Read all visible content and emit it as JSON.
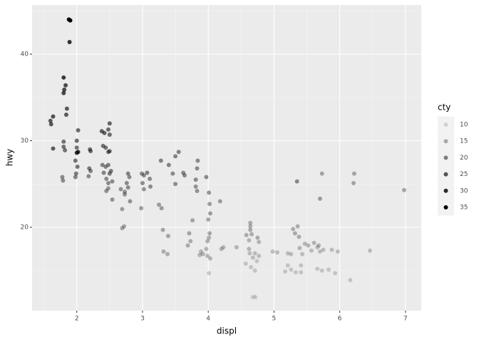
{
  "chart_data": {
    "type": "scatter",
    "x_label": "displ",
    "y_label": "hwy",
    "xlim": [
      1.32,
      7.24
    ],
    "ylim": [
      10.37,
      45.68
    ],
    "xticks": [
      2,
      3,
      4,
      5,
      6,
      7
    ],
    "yticks": [
      20,
      30,
      40
    ],
    "grid": true,
    "legend": {
      "title": "cty",
      "position": "right",
      "breaks": [
        10,
        15,
        20,
        25,
        30,
        35
      ]
    },
    "series": [
      {
        "color": "#000000",
        "x": [
          1.88,
          1.9,
          1.89,
          1.8,
          1.83,
          1.81,
          1.8,
          1.85,
          1.84,
          1.6,
          1.64,
          1.61,
          1.8,
          1.8,
          1.82,
          1.64,
          2.0,
          2.0,
          2.02,
          2.0,
          1.98,
          2.01,
          1.99,
          1.98,
          1.78,
          1.79,
          2.02,
          2.2,
          2.21,
          2.19,
          2.21,
          2.18,
          2.38,
          2.42,
          2.48,
          2.5,
          2.5,
          2.4,
          2.44,
          2.48,
          2.5,
          2.39,
          2.44,
          2.48,
          2.52,
          2.5,
          2.41,
          2.45,
          2.48,
          2.54,
          2.45,
          2.48,
          2.54,
          2.78,
          2.8,
          2.76,
          2.67,
          2.73,
          2.73,
          2.78,
          2.81,
          2.69,
          2.72,
          2.69,
          2.99,
          3.02,
          3.07,
          3.0,
          3.11,
          3.12,
          3.02,
          2.98,
          3.25,
          3.29,
          3.28,
          3.4,
          3.5,
          3.55,
          3.46,
          3.5,
          3.62,
          3.64,
          3.84,
          3.83,
          3.81,
          3.83,
          3.81,
          3.97,
          4.01,
          4.02,
          4.03,
          4.0,
          4.18,
          3.76,
          3.32,
          3.38,
          3.31,
          3.39,
          3.71,
          3.73,
          3.69,
          3.89,
          3.92,
          3.87,
          4.01,
          3.99,
          4.02,
          3.97,
          3.99,
          4.03,
          4.2,
          4.23,
          4.43,
          4.64,
          4.64,
          4.64,
          4.66,
          4.58,
          4.62,
          4.62,
          4.75,
          4.77,
          4.63,
          4.71,
          4.68,
          4.77,
          4.74,
          4.57,
          4.65,
          4.71,
          4.7,
          4.67,
          4.72,
          4.01,
          4.98,
          5.05,
          5.21,
          5.26,
          5.29,
          5.32,
          5.36,
          5.38,
          5.39,
          5.43,
          5.47,
          5.52,
          5.57,
          5.21,
          5.26,
          5.33,
          5.17,
          5.35,
          5.61,
          5.66,
          5.68,
          5.7,
          5.75,
          5.66,
          5.73,
          5.83,
          5.93,
          5.88,
          5.97,
          6.16,
          6.46,
          5.73,
          5.7,
          6.22,
          6.21,
          6.98,
          5.41,
          5.41
        ],
        "values": [
          44.0,
          43.9,
          41.4,
          37.3,
          36.4,
          35.9,
          35.5,
          33.7,
          33.0,
          32.3,
          32.8,
          31.9,
          29.9,
          29.3,
          28.9,
          29.1,
          30.0,
          29.2,
          28.7,
          28.6,
          27.7,
          27.0,
          26.2,
          25.8,
          25.8,
          25.4,
          31.2,
          29.0,
          28.8,
          26.8,
          26.5,
          25.9,
          31.1,
          30.9,
          31.3,
          32.0,
          30.7,
          29.4,
          29.2,
          28.7,
          28.8,
          27.2,
          27.0,
          27.2,
          26.5,
          26.2,
          26.3,
          25.6,
          25.1,
          25.3,
          24.2,
          24.5,
          23.2,
          26.2,
          25.8,
          25.1,
          24.4,
          23.8,
          24.1,
          24.6,
          23.0,
          22.1,
          20.1,
          19.9,
          26.2,
          26.0,
          26.3,
          25.1,
          25.6,
          24.7,
          24.4,
          22.2,
          22.6,
          22.2,
          27.7,
          27.2,
          28.2,
          28.7,
          26.2,
          25.0,
          26.3,
          26.0,
          27.7,
          26.8,
          24.7,
          24.2,
          25.5,
          25.8,
          24.0,
          22.7,
          21.6,
          20.9,
          23.0,
          20.8,
          17.2,
          16.9,
          19.7,
          19.0,
          19.3,
          18.4,
          17.9,
          17.2,
          16.9,
          16.8,
          18.8,
          18.4,
          19.3,
          17.5,
          16.7,
          16.4,
          17.5,
          17.7,
          17.7,
          20.5,
          20.1,
          19.7,
          19.2,
          19.1,
          18.5,
          17.5,
          18.8,
          18.3,
          17.0,
          17.0,
          16.5,
          16.7,
          16.1,
          15.8,
          15.4,
          15.0,
          12.0,
          11.9,
          11.9,
          14.7,
          17.2,
          17.1,
          17.0,
          16.9,
          19.8,
          19.3,
          20.1,
          18.9,
          17.6,
          16.9,
          18.1,
          17.9,
          17.3,
          15.6,
          15.1,
          14.8,
          14.9,
          25.3,
          18.2,
          17.7,
          17.9,
          17.2,
          17.4,
          15.2,
          15.0,
          15.1,
          14.7,
          17.4,
          17.2,
          13.9,
          17.3,
          26.2,
          23.3,
          26.2,
          25.1,
          24.3,
          14.8,
          15.6
        ],
        "cty": [
          33,
          35,
          29,
          28,
          26,
          26,
          26,
          24,
          24,
          24,
          25,
          24,
          21,
          21,
          21,
          24,
          22,
          21,
          28,
          28,
          21,
          21,
          20,
          19,
          18,
          18,
          22,
          21,
          21,
          20,
          19,
          18,
          23,
          23,
          22,
          23,
          22,
          21,
          21,
          21,
          21,
          19,
          19,
          19,
          20,
          20,
          19,
          18,
          18,
          18,
          17,
          17,
          17,
          19,
          18,
          18,
          17,
          17,
          17,
          18,
          17,
          16,
          15,
          15,
          18,
          18,
          19,
          18,
          18,
          18,
          17,
          16,
          16,
          16,
          19,
          19,
          19,
          19,
          18,
          18,
          18,
          18,
          18,
          18,
          17,
          17,
          18,
          18,
          17,
          16,
          16,
          15,
          16,
          15,
          14,
          14,
          15,
          15,
          15,
          14,
          14,
          13,
          13,
          13,
          14,
          14,
          15,
          13,
          13,
          13,
          13,
          13,
          13,
          14,
          14,
          14,
          14,
          14,
          13,
          13,
          14,
          13,
          12,
          12,
          12,
          12,
          11,
          11,
          11,
          11,
          9,
          9,
          9,
          11,
          12,
          12,
          12,
          12,
          14,
          14,
          14,
          14,
          13,
          12,
          13,
          13,
          12,
          11,
          11,
          11,
          11,
          18,
          13,
          12,
          13,
          12,
          12,
          11,
          11,
          11,
          11,
          12,
          12,
          11,
          12,
          15,
          16,
          15,
          15,
          15,
          11,
          11
        ]
      }
    ]
  }
}
